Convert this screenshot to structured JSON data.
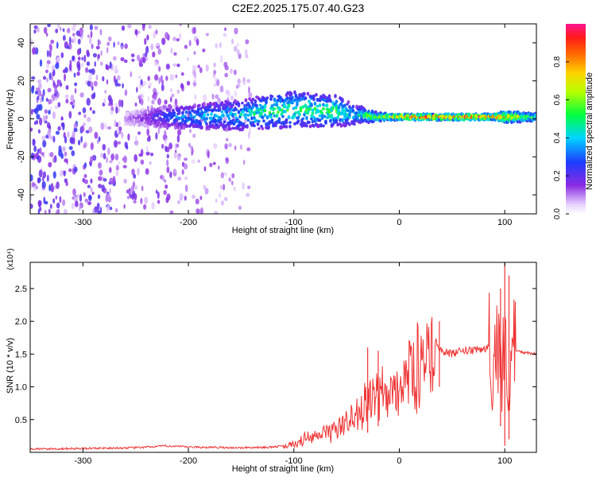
{
  "title": "C2E2.2025.175.07.40.G23",
  "colors": {
    "snr_line": "#ee3333",
    "spectrogram_low": "#6a00ff",
    "spectrogram_mid": "#00e676",
    "spectrogram_high": "#ff1744"
  },
  "chart_data": [
    {
      "type": "heatmap",
      "title": "C2E2.2025.175.07.40.G23",
      "xlabel": "Height of straight line (km)",
      "ylabel": "Frequency (Hz)",
      "xlim": [
        -350,
        130
      ],
      "ylim": [
        -50,
        50
      ],
      "xticks": [
        -300,
        -200,
        -100,
        0,
        100
      ],
      "xtick_labels": [
        "-300",
        "-200",
        "-100",
        "0",
        "100"
      ],
      "yticks": [
        -40,
        -20,
        0,
        20,
        40
      ],
      "ytick_labels": [
        "-40",
        "-20",
        "0",
        "20",
        "40"
      ],
      "colorbar": {
        "label": "Normalized spectral amplitude",
        "range": [
          0,
          1
        ],
        "ticks": [
          0.0,
          0.2,
          0.4,
          0.6,
          0.8
        ],
        "tick_labels": [
          "0.0",
          "0.2",
          "0.4",
          "0.6",
          "0.8"
        ],
        "colormap": "rainbow (white-violet-blue-cyan-green-yellow-orange-red-magenta)"
      },
      "ridge": {
        "description": "concentrated spectral energy near 0 Hz",
        "x": [
          -260,
          -220,
          -200,
          -150,
          -120,
          -100,
          -60,
          -40,
          -20,
          0,
          50,
          90,
          100,
          130
        ],
        "center_hz": [
          0,
          1,
          1,
          2,
          4,
          5,
          4,
          2,
          1,
          1,
          1,
          1,
          1,
          1
        ],
        "half_width_hz": [
          3,
          6,
          6,
          8,
          9,
          9,
          8,
          5,
          2,
          1.5,
          1.5,
          1.5,
          3,
          2
        ],
        "peak_amplitude": [
          0.1,
          0.3,
          0.4,
          0.45,
          0.55,
          0.55,
          0.55,
          0.45,
          0.7,
          0.9,
          0.95,
          0.95,
          0.8,
          0.6
        ]
      },
      "noise_region_x": [
        -350,
        -140
      ]
    },
    {
      "type": "line",
      "title": "",
      "xlabel": "Height of straight line (km)",
      "ylabel": "SNR (10 * v/v)",
      "y_multiplier": "(x10⁴)",
      "xlim": [
        -350,
        130
      ],
      "ylim": [
        0,
        2.9
      ],
      "xticks": [
        -300,
        -200,
        -100,
        0,
        100
      ],
      "xtick_labels": [
        "-300",
        "-200",
        "-100",
        "0",
        "100"
      ],
      "yticks": [
        0.5,
        1.0,
        1.5,
        2.0,
        2.5
      ],
      "ytick_labels": [
        "0.5",
        "1.0",
        "1.5",
        "2.0",
        "2.5"
      ],
      "series": [
        {
          "color": "#ee3333",
          "x": [
            -350,
            -300,
            -250,
            -220,
            -200,
            -150,
            -120,
            -100,
            -90,
            -80,
            -70,
            -60,
            -50,
            -40,
            -30,
            -20,
            -10,
            0,
            10,
            20,
            30,
            35,
            40,
            50,
            60,
            70,
            80,
            85,
            90,
            95,
            100,
            105,
            110,
            120,
            130
          ],
          "y": [
            0.05,
            0.06,
            0.07,
            0.1,
            0.08,
            0.07,
            0.08,
            0.12,
            0.2,
            0.22,
            0.3,
            0.35,
            0.45,
            0.6,
            0.75,
            0.85,
            0.9,
            1.0,
            1.2,
            1.35,
            1.45,
            1.7,
            1.55,
            1.5,
            1.55,
            1.55,
            1.58,
            1.6,
            1.5,
            1.6,
            1.3,
            1.4,
            1.55,
            1.52,
            1.5
          ]
        }
      ],
      "spikes": [
        {
          "x": -30,
          "y_min": 0.3,
          "y_max": 1.6
        },
        {
          "x": -20,
          "y_min": 0.4,
          "y_max": 1.55
        },
        {
          "x": 38,
          "y_min": 1.0,
          "y_max": 2.0
        },
        {
          "x": 96,
          "y_min": 0.4,
          "y_max": 2.5
        },
        {
          "x": 100,
          "y_min": 0.1,
          "y_max": 2.95
        },
        {
          "x": 104,
          "y_min": 0.2,
          "y_max": 2.7
        }
      ]
    }
  ]
}
